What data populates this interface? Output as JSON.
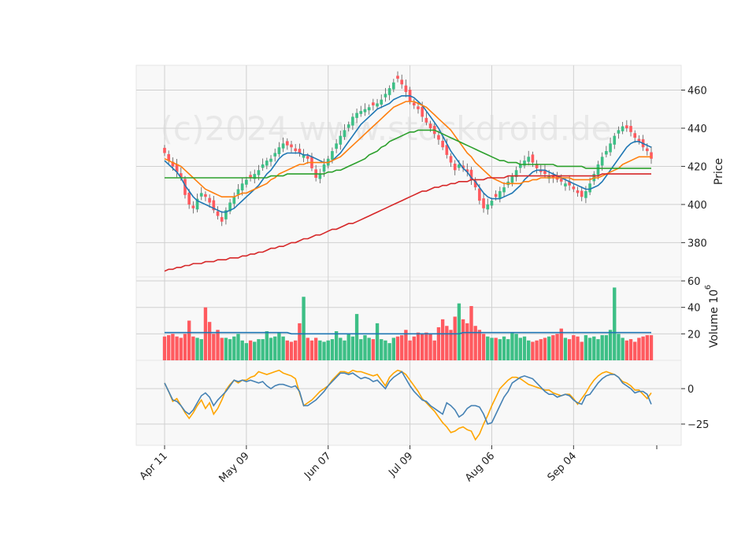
{
  "watermark": "(c)2024 www.stockdroid.de",
  "colors": {
    "up": "#3dbf86",
    "down": "#ff5a5f",
    "ma_short": "#1f77b4",
    "ma_mid": "#ff7f0e",
    "ma_long": "#2ca02c",
    "ma_200": "#d62728",
    "vol_ma": "#1f77b4",
    "osc1": "#4682b4",
    "osc2": "#ffa500",
    "panel_bg": "#f8f8f8",
    "grid": "#d0d0d0"
  },
  "chart_data": {
    "type": "candlestick",
    "x_tick_labels": [
      "Apr 11",
      "May 09",
      "Jun 07",
      "Jul 09",
      "Aug 06",
      "Sep 04"
    ],
    "x_tick_index": [
      0,
      20,
      40,
      60,
      80,
      100
    ],
    "n_bars": 120,
    "price_panel": {
      "ylabel": "Price",
      "ylim": [
        362,
        473
      ],
      "yticks": [
        380,
        400,
        420,
        440,
        460
      ],
      "close": [
        427,
        423,
        420,
        417,
        414,
        405,
        400,
        398,
        403,
        406,
        404,
        401,
        397,
        394,
        391,
        397,
        401,
        404,
        408,
        411,
        413,
        414,
        416,
        418,
        421,
        423,
        424,
        427,
        430,
        432,
        431,
        430,
        428,
        427,
        426,
        424,
        419,
        414,
        416,
        421,
        424,
        428,
        432,
        436,
        439,
        442,
        446,
        448,
        449,
        450,
        451,
        452,
        453,
        455,
        458,
        461,
        464,
        466,
        463,
        459,
        454,
        452,
        450,
        446,
        443,
        440,
        437,
        434,
        430,
        426,
        422,
        418,
        421,
        419,
        417,
        413,
        409,
        402,
        398,
        400,
        402,
        404,
        407,
        409,
        412,
        415,
        418,
        421,
        423,
        425,
        422,
        419,
        417,
        416,
        415,
        414,
        413,
        412,
        411,
        410,
        408,
        406,
        404,
        407,
        411,
        416,
        421,
        425,
        428,
        432,
        436,
        439,
        441,
        440,
        438,
        435,
        433,
        430,
        428,
        424
      ],
      "series_ma": [
        {
          "values": [
            423,
            421,
            419,
            417,
            414,
            410,
            407,
            404,
            402,
            401,
            400,
            399,
            398,
            397,
            396,
            396,
            397,
            398,
            400,
            402,
            404,
            406,
            408,
            410,
            413,
            416,
            418,
            421,
            424,
            426,
            427,
            427,
            427,
            427,
            426,
            426,
            425,
            424,
            423,
            422,
            422,
            423,
            425,
            427,
            430,
            433,
            436,
            439,
            442,
            444,
            446,
            448,
            450,
            451,
            452,
            453,
            455,
            456,
            457,
            457,
            457,
            456,
            454,
            452,
            449,
            446,
            443,
            440,
            436,
            432,
            428,
            425,
            422,
            419,
            417,
            414,
            412,
            409,
            406,
            404,
            403,
            403,
            403,
            404,
            405,
            406,
            408,
            410,
            413,
            415,
            417,
            418,
            418,
            418,
            417,
            416,
            415,
            414,
            413,
            412,
            411,
            410,
            409,
            408,
            408,
            409,
            410,
            412,
            415,
            418,
            421,
            424,
            427,
            430,
            432,
            433,
            433,
            432,
            431,
            430
          ]
        },
        {
          "values": [
            424,
            423,
            422,
            421,
            420,
            418,
            416,
            414,
            412,
            410,
            408,
            407,
            406,
            405,
            404,
            404,
            404,
            404,
            405,
            406,
            406,
            407,
            408,
            409,
            410,
            411,
            413,
            414,
            416,
            417,
            418,
            419,
            420,
            421,
            421,
            422,
            422,
            422,
            422,
            422,
            422,
            423,
            424,
            425,
            427,
            429,
            431,
            433,
            435,
            437,
            439,
            441,
            443,
            445,
            447,
            449,
            451,
            452,
            453,
            454,
            454,
            454,
            453,
            452,
            451,
            449,
            447,
            445,
            443,
            441,
            439,
            436,
            433,
            430,
            427,
            425,
            422,
            420,
            418,
            416,
            414,
            413,
            412,
            411,
            411,
            411,
            411,
            411,
            412,
            412,
            413,
            413,
            414,
            414,
            414,
            414,
            414,
            414,
            414,
            414,
            413,
            413,
            413,
            413,
            413,
            414,
            414,
            415,
            416,
            417,
            418,
            419,
            421,
            422,
            423,
            424,
            425,
            425,
            425,
            425
          ]
        },
        {
          "values": [
            414,
            414,
            414,
            414,
            414,
            414,
            414,
            414,
            414,
            414,
            414,
            414,
            414,
            414,
            414,
            414,
            414,
            414,
            414,
            414,
            414,
            414,
            414,
            414,
            414,
            414,
            415,
            415,
            415,
            415,
            416,
            416,
            416,
            416,
            416,
            416,
            416,
            416,
            416,
            416,
            417,
            417,
            418,
            418,
            419,
            420,
            421,
            422,
            423,
            424,
            426,
            427,
            428,
            430,
            431,
            433,
            434,
            435,
            436,
            437,
            438,
            438,
            439,
            439,
            439,
            439,
            439,
            438,
            437,
            436,
            435,
            434,
            433,
            432,
            431,
            430,
            429,
            428,
            427,
            426,
            425,
            424,
            423,
            423,
            422,
            422,
            422,
            421,
            421,
            421,
            421,
            421,
            421,
            421,
            421,
            421,
            420,
            420,
            420,
            420,
            420,
            420,
            420,
            419,
            419,
            419,
            419,
            419,
            419,
            419,
            419,
            419,
            419,
            419,
            419,
            419,
            419,
            419,
            419,
            419
          ]
        },
        {
          "values": [
            365,
            366,
            366,
            367,
            367,
            368,
            368,
            369,
            369,
            369,
            370,
            370,
            370,
            371,
            371,
            371,
            372,
            372,
            372,
            373,
            373,
            374,
            374,
            375,
            375,
            376,
            377,
            377,
            378,
            378,
            379,
            380,
            380,
            381,
            382,
            382,
            383,
            384,
            384,
            385,
            386,
            387,
            387,
            388,
            389,
            390,
            390,
            391,
            392,
            393,
            394,
            395,
            396,
            397,
            398,
            399,
            400,
            401,
            402,
            403,
            404,
            405,
            406,
            407,
            407,
            408,
            409,
            409,
            410,
            410,
            411,
            411,
            412,
            412,
            412,
            413,
            413,
            413,
            413,
            414,
            414,
            414,
            414,
            414,
            415,
            415,
            415,
            415,
            415,
            415,
            415,
            415,
            415,
            415,
            415,
            415,
            415,
            415,
            415,
            415,
            415,
            415,
            415,
            415,
            415,
            415,
            415,
            416,
            416,
            416,
            416,
            416,
            416,
            416,
            416,
            416,
            416,
            416,
            416,
            416
          ]
        }
      ]
    },
    "volume_panel": {
      "ylabel": "Volume  10^6",
      "ylim": [
        0,
        63
      ],
      "yticks": [
        20,
        40,
        60
      ],
      "volume": [
        18,
        19,
        20,
        18,
        17,
        20,
        30,
        18,
        17,
        16,
        40,
        29,
        20,
        23,
        17,
        17,
        16,
        18,
        20,
        15,
        13,
        15,
        14,
        16,
        16,
        22,
        17,
        18,
        21,
        18,
        15,
        14,
        15,
        28,
        48,
        17,
        15,
        17,
        15,
        14,
        15,
        16,
        22,
        17,
        15,
        20,
        18,
        35,
        16,
        19,
        17,
        16,
        28,
        16,
        15,
        13,
        17,
        18,
        19,
        23,
        15,
        18,
        21,
        20,
        21,
        20,
        15,
        25,
        31,
        26,
        23,
        33,
        43,
        31,
        28,
        41,
        26,
        23,
        20,
        18,
        17,
        17,
        16,
        18,
        16,
        21,
        20,
        17,
        18,
        15,
        14,
        15,
        16,
        17,
        18,
        19,
        20,
        24,
        17,
        16,
        19,
        18,
        14,
        19,
        17,
        18,
        16,
        19,
        19,
        23,
        55,
        20,
        17,
        15,
        16,
        14,
        17,
        18,
        19,
        19
      ],
      "vol_ma": [
        21,
        21,
        21,
        21,
        21,
        21,
        21,
        21,
        21,
        21,
        21,
        21,
        21,
        21,
        21,
        21,
        21,
        21,
        21,
        21,
        21,
        21,
        21,
        21,
        21,
        21,
        21,
        21,
        21,
        21,
        21,
        20,
        20,
        20,
        20,
        20,
        20,
        20,
        20,
        20,
        20,
        20,
        20,
        20,
        20,
        20,
        20,
        20,
        20,
        20,
        20,
        20,
        20,
        20,
        20,
        20,
        20,
        20,
        20,
        20,
        20,
        20,
        20,
        20,
        20,
        20,
        20,
        20,
        20,
        20,
        20,
        20,
        20,
        21,
        21,
        21,
        21,
        21,
        21,
        21,
        21,
        21,
        21,
        21,
        21,
        21,
        21,
        21,
        21,
        21,
        21,
        21,
        21,
        21,
        21,
        21,
        21,
        21,
        21,
        21,
        21,
        21,
        21,
        21,
        21,
        21,
        21,
        21,
        21,
        21,
        21,
        21,
        21,
        21,
        21,
        21,
        21,
        21,
        21,
        21
      ]
    },
    "oscillator_panel": {
      "ylim": [
        -40,
        20
      ],
      "yticks": [
        0,
        -25
      ],
      "line1": [
        4,
        -2,
        -8,
        -9,
        -12,
        -16,
        -18,
        -15,
        -10,
        -5,
        -3,
        -6,
        -12,
        -8,
        -5,
        -2,
        2,
        6,
        5,
        6,
        5,
        6,
        5,
        4,
        5,
        2,
        0,
        2,
        3,
        3,
        2,
        1,
        2,
        -2,
        -12,
        -12,
        -10,
        -8,
        -5,
        -2,
        2,
        5,
        8,
        11,
        11,
        10,
        11,
        9,
        7,
        8,
        7,
        5,
        6,
        3,
        0,
        5,
        8,
        10,
        12,
        7,
        2,
        -2,
        -5,
        -8,
        -9,
        -12,
        -14,
        -16,
        -18,
        -10,
        -12,
        -15,
        -20,
        -18,
        -14,
        -12,
        -12,
        -13,
        -18,
        -25,
        -24,
        -18,
        -12,
        -6,
        -2,
        4,
        6,
        8,
        9,
        8,
        7,
        4,
        1,
        -2,
        -4,
        -4,
        -6,
        -5,
        -4,
        -5,
        -8,
        -10,
        -11,
        -5,
        -4,
        0,
        4,
        7,
        9,
        10,
        10,
        8,
        4,
        2,
        0,
        -3,
        -2,
        -2,
        -4,
        -11
      ],
      "line2": [
        4,
        -2,
        -9,
        -7,
        -12,
        -17,
        -21,
        -17,
        -12,
        -8,
        -14,
        -10,
        -18,
        -14,
        -8,
        -1,
        3,
        6,
        4,
        6,
        6,
        8,
        9,
        12,
        11,
        10,
        11,
        12,
        13,
        11,
        10,
        9,
        7,
        -3,
        -12,
        -10,
        -8,
        -5,
        -2,
        0,
        2,
        6,
        9,
        12,
        12,
        11,
        13,
        12,
        12,
        11,
        10,
        9,
        10,
        6,
        2,
        8,
        11,
        13,
        12,
        10,
        6,
        2,
        -2,
        -7,
        -10,
        -13,
        -16,
        -20,
        -24,
        -27,
        -31,
        -30,
        -28,
        -27,
        -29,
        -30,
        -36,
        -32,
        -25,
        -19,
        -12,
        -6,
        0,
        3,
        6,
        8,
        8,
        7,
        5,
        3,
        2,
        1,
        0,
        -1,
        -1,
        -3,
        -4,
        -5,
        -4,
        -4,
        -7,
        -11,
        -7,
        -3,
        2,
        6,
        9,
        11,
        12,
        11,
        10,
        8,
        5,
        4,
        2,
        -1,
        -1,
        -4,
        -7,
        -3
      ]
    }
  }
}
